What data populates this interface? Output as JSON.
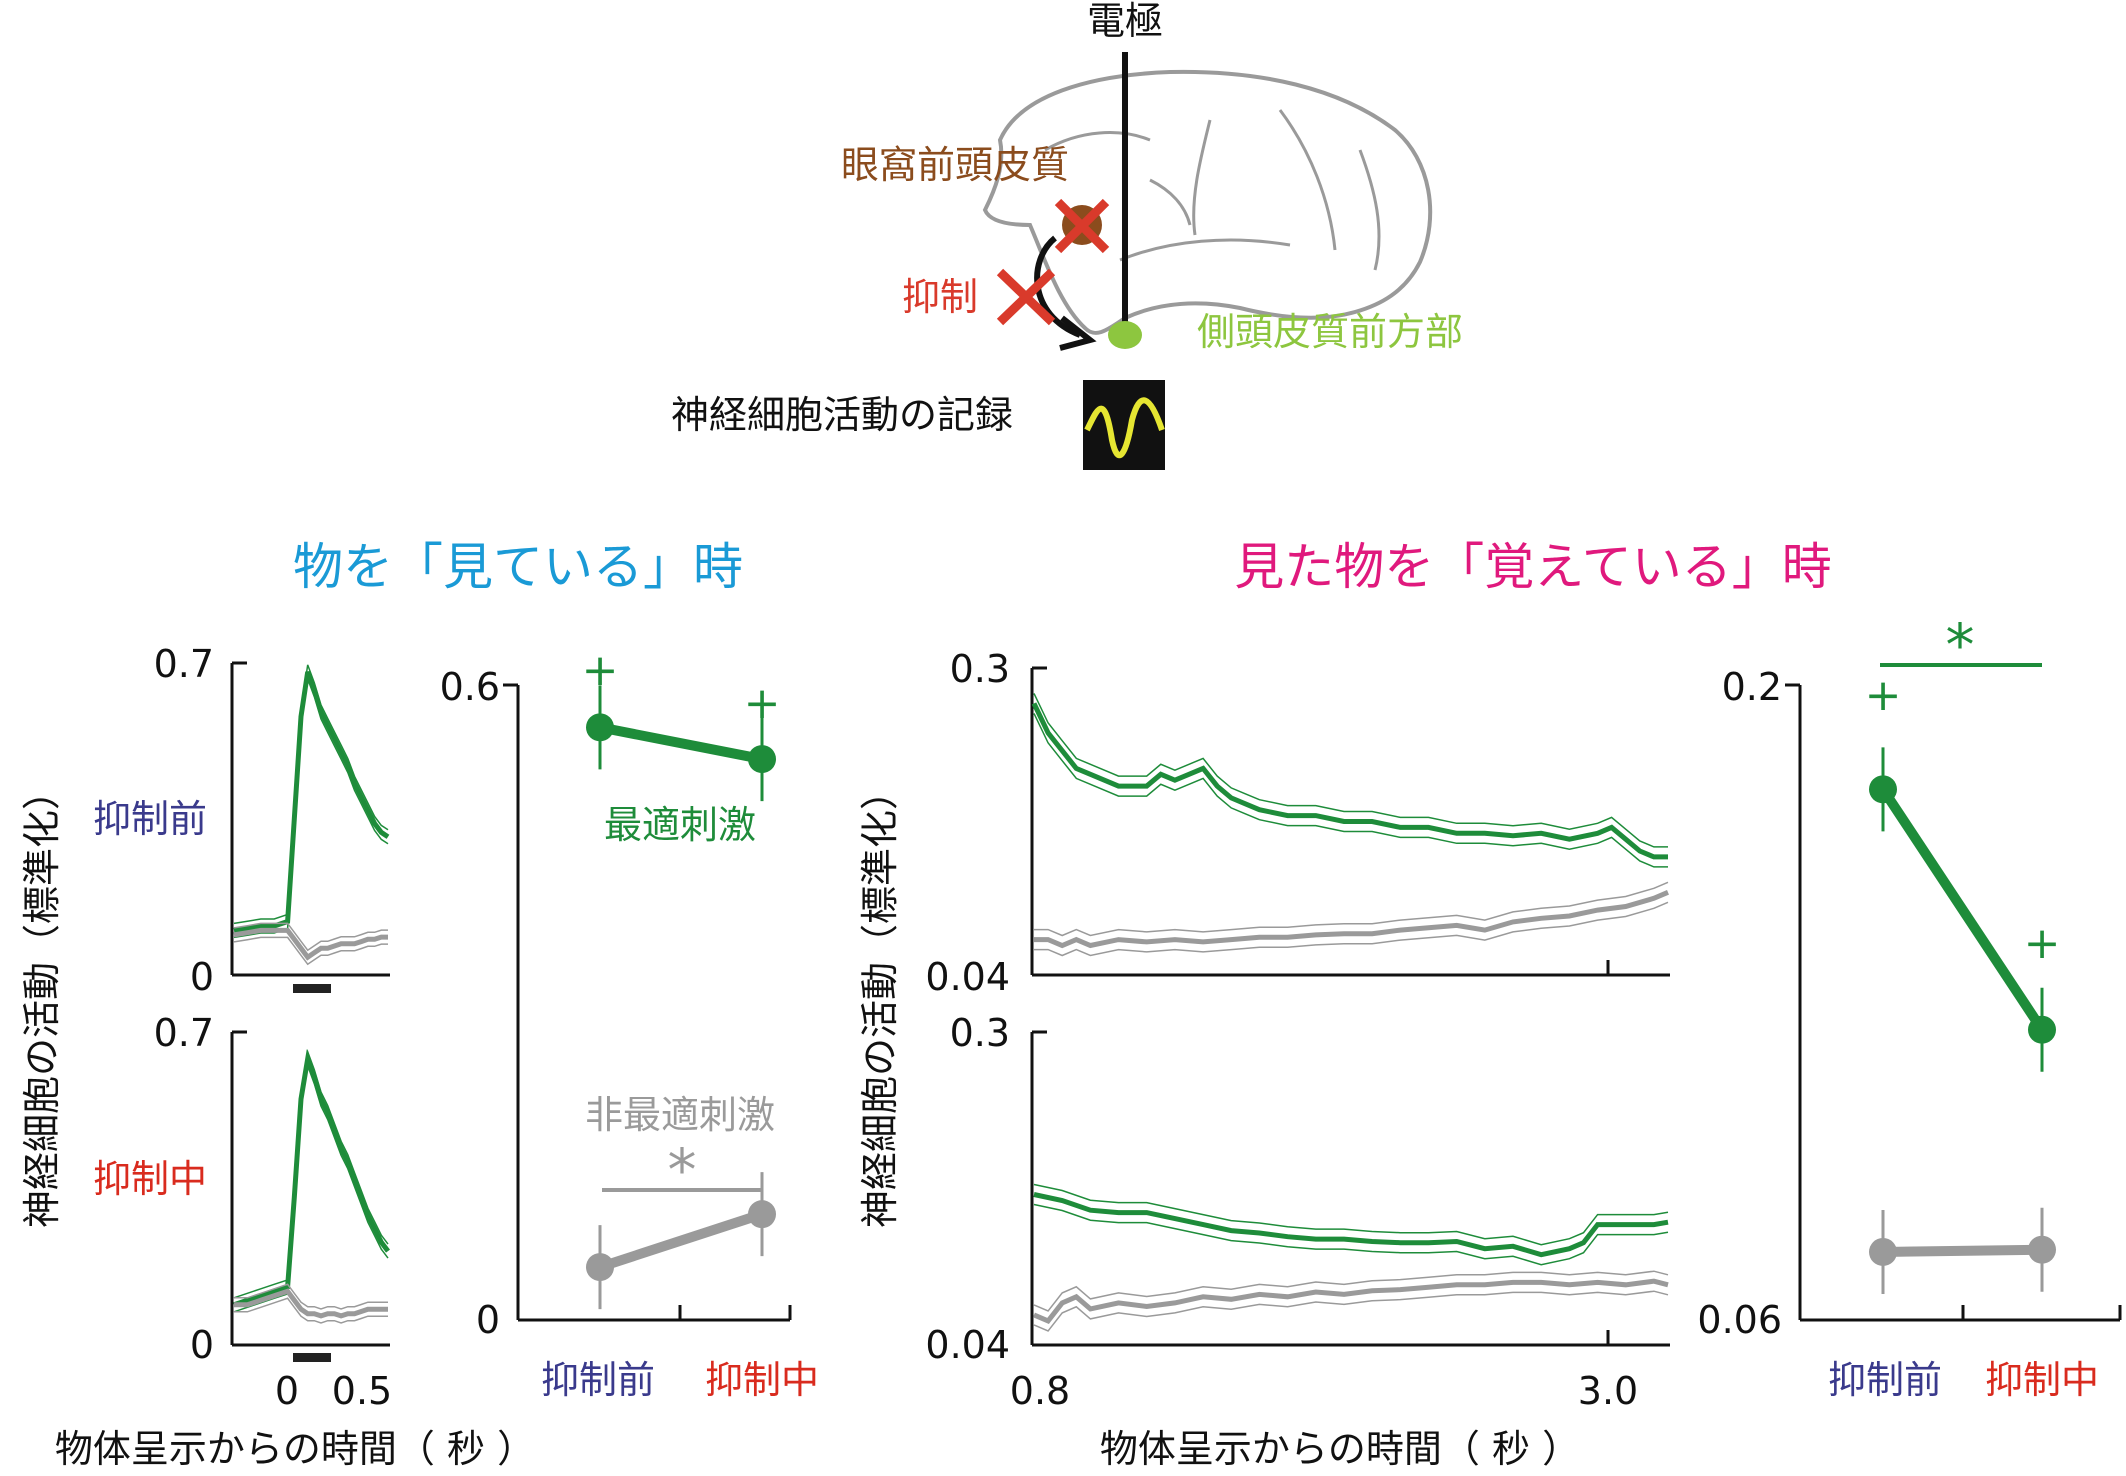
{
  "schematic": {
    "electrode_label": "電極",
    "ofc_label": "眼窩前頭皮質",
    "inhibition_label": "抑制",
    "target_label": "側頭皮質前方部",
    "recording_label": "神経細胞活動の記録"
  },
  "headings": {
    "seeing": "物を「見ている」時",
    "remembering": "見た物を「覚えている」時"
  },
  "labels": {
    "before": "抑制前",
    "during": "抑制中",
    "optimal": "最適刺激",
    "nonoptimal": "非最適刺激",
    "y_axis": "神経細胞の活動（標準化）",
    "x_axis_left": "物体呈示からの時間（ 秒 ）",
    "x_axis_right": "物体呈示からの時間（ 秒 ）",
    "star": "*",
    "plus": "+"
  },
  "colors": {
    "optimal": "#1e8c3a",
    "nonoptimal": "#9a9a9a",
    "seeing_heading": "#1a9ad6",
    "remembering_heading": "#e0197d",
    "before_label": "#3a3a8c",
    "during_label": "#d92b1e",
    "ofc": "#8b4c1d",
    "target": "#8dc63f",
    "cross": "#d93a2b"
  },
  "chart_data": [
    {
      "id": "see_ts_before",
      "type": "line",
      "condition": "抑制前",
      "ylim": [
        0,
        0.7
      ],
      "yticks": [
        "0.7",
        "0"
      ],
      "xlim": [
        -0.35,
        0.8
      ],
      "series": [
        {
          "color": "optimal",
          "x": [
            -0.35,
            -0.25,
            -0.15,
            -0.05,
            0.05,
            0.1,
            0.15,
            0.2,
            0.25,
            0.3,
            0.35,
            0.4,
            0.45,
            0.5,
            0.55,
            0.6,
            0.65,
            0.7,
            0.75,
            0.8
          ],
          "y": [
            0.1,
            0.105,
            0.11,
            0.11,
            0.12,
            0.35,
            0.58,
            0.68,
            0.64,
            0.59,
            0.56,
            0.53,
            0.5,
            0.47,
            0.43,
            0.4,
            0.37,
            0.34,
            0.32,
            0.31
          ]
        },
        {
          "color": "nonoptimal",
          "x": [
            -0.35,
            -0.25,
            -0.15,
            -0.05,
            0.05,
            0.1,
            0.15,
            0.2,
            0.25,
            0.3,
            0.35,
            0.4,
            0.45,
            0.5,
            0.55,
            0.6,
            0.65,
            0.7,
            0.75,
            0.8
          ],
          "y": [
            0.09,
            0.095,
            0.1,
            0.1,
            0.1,
            0.08,
            0.06,
            0.04,
            0.05,
            0.06,
            0.06,
            0.065,
            0.07,
            0.07,
            0.07,
            0.075,
            0.08,
            0.08,
            0.085,
            0.085
          ]
        }
      ]
    },
    {
      "id": "see_ts_during",
      "type": "line",
      "condition": "抑制中",
      "ylim": [
        0,
        0.7
      ],
      "yticks": [
        "0.7",
        "0"
      ],
      "xlim": [
        -0.35,
        0.8
      ],
      "xticks": [
        "0",
        "0.5"
      ],
      "series": [
        {
          "color": "optimal",
          "x": [
            -0.35,
            -0.25,
            -0.15,
            -0.05,
            0.05,
            0.1,
            0.15,
            0.2,
            0.25,
            0.3,
            0.35,
            0.4,
            0.45,
            0.5,
            0.55,
            0.6,
            0.65,
            0.7,
            0.75,
            0.8
          ],
          "y": [
            0.09,
            0.1,
            0.11,
            0.12,
            0.13,
            0.33,
            0.55,
            0.64,
            0.6,
            0.55,
            0.52,
            0.48,
            0.44,
            0.41,
            0.37,
            0.33,
            0.29,
            0.26,
            0.23,
            0.21
          ]
        },
        {
          "color": "nonoptimal",
          "x": [
            -0.35,
            -0.25,
            -0.15,
            -0.05,
            0.05,
            0.1,
            0.15,
            0.2,
            0.25,
            0.3,
            0.35,
            0.4,
            0.45,
            0.5,
            0.55,
            0.6,
            0.65,
            0.7,
            0.75,
            0.8
          ],
          "y": [
            0.09,
            0.09,
            0.1,
            0.11,
            0.12,
            0.1,
            0.08,
            0.07,
            0.07,
            0.065,
            0.07,
            0.07,
            0.065,
            0.07,
            0.07,
            0.075,
            0.08,
            0.08,
            0.08,
            0.08
          ]
        }
      ]
    },
    {
      "id": "see_summary",
      "type": "line",
      "ylim": [
        0,
        0.6
      ],
      "yticks": [
        "0.6",
        "0"
      ],
      "categories": [
        "抑制前",
        "抑制中"
      ],
      "series": [
        {
          "name": "最適刺激",
          "color": "optimal",
          "values": [
            0.56,
            0.53
          ],
          "markers": [
            "+",
            "+"
          ]
        },
        {
          "name": "非最適刺激",
          "color": "nonoptimal",
          "values": [
            0.05,
            0.1
          ],
          "significance": "*"
        }
      ]
    },
    {
      "id": "mem_ts_before",
      "type": "line",
      "condition": "抑制前",
      "ylim": [
        0.04,
        0.3
      ],
      "yticks": [
        "0.3",
        "0.04"
      ],
      "xlim": [
        0.8,
        3.05
      ],
      "series": [
        {
          "color": "optimal",
          "x": [
            0.8,
            0.85,
            0.9,
            0.95,
            1.0,
            1.1,
            1.2,
            1.25,
            1.3,
            1.35,
            1.4,
            1.45,
            1.5,
            1.55,
            1.6,
            1.7,
            1.8,
            1.9,
            2.0,
            2.1,
            2.2,
            2.3,
            2.4,
            2.5,
            2.6,
            2.7,
            2.8,
            2.85,
            2.9,
            2.95,
            3.0,
            3.05
          ],
          "y": [
            0.27,
            0.245,
            0.23,
            0.215,
            0.21,
            0.2,
            0.2,
            0.21,
            0.205,
            0.21,
            0.215,
            0.2,
            0.19,
            0.185,
            0.18,
            0.175,
            0.175,
            0.17,
            0.17,
            0.165,
            0.165,
            0.16,
            0.16,
            0.158,
            0.16,
            0.155,
            0.16,
            0.165,
            0.155,
            0.145,
            0.14,
            0.14
          ]
        },
        {
          "color": "nonoptimal",
          "x": [
            0.8,
            0.85,
            0.9,
            0.95,
            1.0,
            1.1,
            1.2,
            1.3,
            1.4,
            1.5,
            1.6,
            1.7,
            1.8,
            1.9,
            2.0,
            2.1,
            2.2,
            2.3,
            2.4,
            2.5,
            2.6,
            2.7,
            2.8,
            2.9,
            3.0,
            3.05
          ],
          "y": [
            0.07,
            0.07,
            0.065,
            0.07,
            0.065,
            0.07,
            0.068,
            0.07,
            0.068,
            0.07,
            0.072,
            0.072,
            0.074,
            0.075,
            0.075,
            0.078,
            0.08,
            0.082,
            0.078,
            0.085,
            0.088,
            0.09,
            0.095,
            0.098,
            0.105,
            0.11
          ]
        }
      ]
    },
    {
      "id": "mem_ts_during",
      "type": "line",
      "condition": "抑制中",
      "ylim": [
        0.04,
        0.3
      ],
      "yticks": [
        "0.3",
        "0.04"
      ],
      "xlim": [
        0.8,
        3.05
      ],
      "xticks": [
        "0.8",
        "3.0"
      ],
      "series": [
        {
          "color": "optimal",
          "x": [
            0.8,
            0.9,
            1.0,
            1.1,
            1.2,
            1.3,
            1.4,
            1.5,
            1.6,
            1.7,
            1.8,
            1.9,
            2.0,
            2.1,
            2.2,
            2.3,
            2.4,
            2.5,
            2.6,
            2.7,
            2.75,
            2.8,
            2.85,
            2.9,
            3.0,
            3.05
          ],
          "y": [
            0.165,
            0.16,
            0.152,
            0.15,
            0.15,
            0.145,
            0.14,
            0.135,
            0.133,
            0.13,
            0.128,
            0.128,
            0.126,
            0.125,
            0.125,
            0.126,
            0.12,
            0.122,
            0.115,
            0.12,
            0.125,
            0.14,
            0.14,
            0.14,
            0.14,
            0.142
          ]
        },
        {
          "color": "nonoptimal",
          "x": [
            0.8,
            0.85,
            0.9,
            0.95,
            1.0,
            1.1,
            1.2,
            1.3,
            1.4,
            1.5,
            1.6,
            1.7,
            1.8,
            1.9,
            2.0,
            2.1,
            2.2,
            2.3,
            2.4,
            2.5,
            2.6,
            2.7,
            2.8,
            2.9,
            3.0,
            3.05
          ],
          "y": [
            0.065,
            0.06,
            0.075,
            0.08,
            0.07,
            0.075,
            0.072,
            0.075,
            0.08,
            0.078,
            0.082,
            0.08,
            0.084,
            0.082,
            0.085,
            0.086,
            0.088,
            0.09,
            0.09,
            0.092,
            0.092,
            0.09,
            0.092,
            0.09,
            0.093,
            0.09
          ]
        }
      ]
    },
    {
      "id": "mem_summary",
      "type": "line",
      "ylim": [
        0.06,
        0.2
      ],
      "yticks": [
        "0.2",
        "0.06"
      ],
      "categories": [
        "抑制前",
        "抑制中"
      ],
      "series": [
        {
          "name": "最適刺激",
          "color": "optimal",
          "values": [
            0.177,
            0.124
          ],
          "markers": [
            "+",
            "+"
          ],
          "significance": "*"
        },
        {
          "name": "非最適刺激",
          "color": "nonoptimal",
          "values": [
            0.075,
            0.0755
          ]
        }
      ]
    }
  ]
}
